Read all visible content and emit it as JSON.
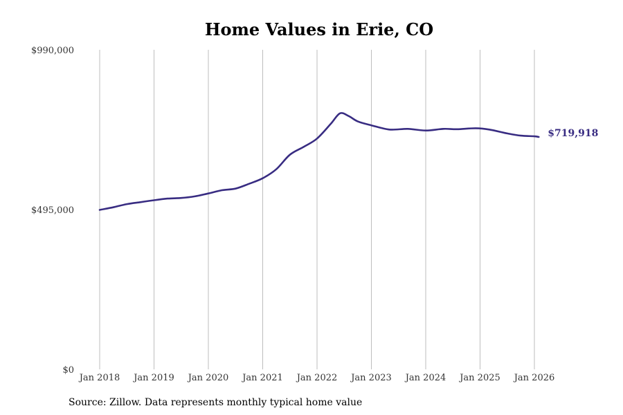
{
  "chart_data": {
    "type": "line",
    "title": "Home Values in Erie, CO",
    "xlabel": "",
    "ylabel": "",
    "ylim": [
      0,
      990000
    ],
    "y_ticks": [
      "$0",
      "$495,000",
      "$990,000"
    ],
    "y_tick_values": [
      0,
      495000,
      990000
    ],
    "x_ticks": [
      "Jan 2018",
      "Jan 2019",
      "Jan 2020",
      "Jan 2021",
      "Jan 2022",
      "Jan 2023",
      "Jan 2024",
      "Jan 2025",
      "Jan 2026"
    ],
    "x_tick_values": [
      2018.0,
      2019.0,
      2020.0,
      2021.0,
      2022.0,
      2023.0,
      2024.0,
      2025.0,
      2026.0
    ],
    "xlim": [
      2018.0,
      2026.0
    ],
    "grid": "vertical",
    "series": [
      {
        "name": "Typical home value",
        "color": "#382c82",
        "x": [
          2018.0,
          2018.25,
          2018.5,
          2018.75,
          2019.0,
          2019.25,
          2019.5,
          2019.75,
          2020.0,
          2020.25,
          2020.5,
          2020.75,
          2021.0,
          2021.25,
          2021.5,
          2021.75,
          2022.0,
          2022.25,
          2022.42,
          2022.58,
          2022.75,
          2023.0,
          2023.33,
          2023.67,
          2024.0,
          2024.33,
          2024.58,
          2024.92,
          2025.17,
          2025.5,
          2025.75,
          2026.0,
          2026.08
        ],
        "values": [
          494000,
          502000,
          512000,
          518000,
          524000,
          529000,
          531000,
          536000,
          545000,
          555000,
          560000,
          575000,
          592000,
          620000,
          665000,
          689000,
          715000,
          760000,
          793000,
          785000,
          768000,
          756000,
          743000,
          745000,
          740000,
          745000,
          744000,
          747000,
          743000,
          731000,
          724000,
          722000,
          719918
        ]
      }
    ],
    "last_value_label": "$719,918"
  },
  "footer": {
    "source_note": "Source: Zillow. Data represents monthly typical home value"
  }
}
